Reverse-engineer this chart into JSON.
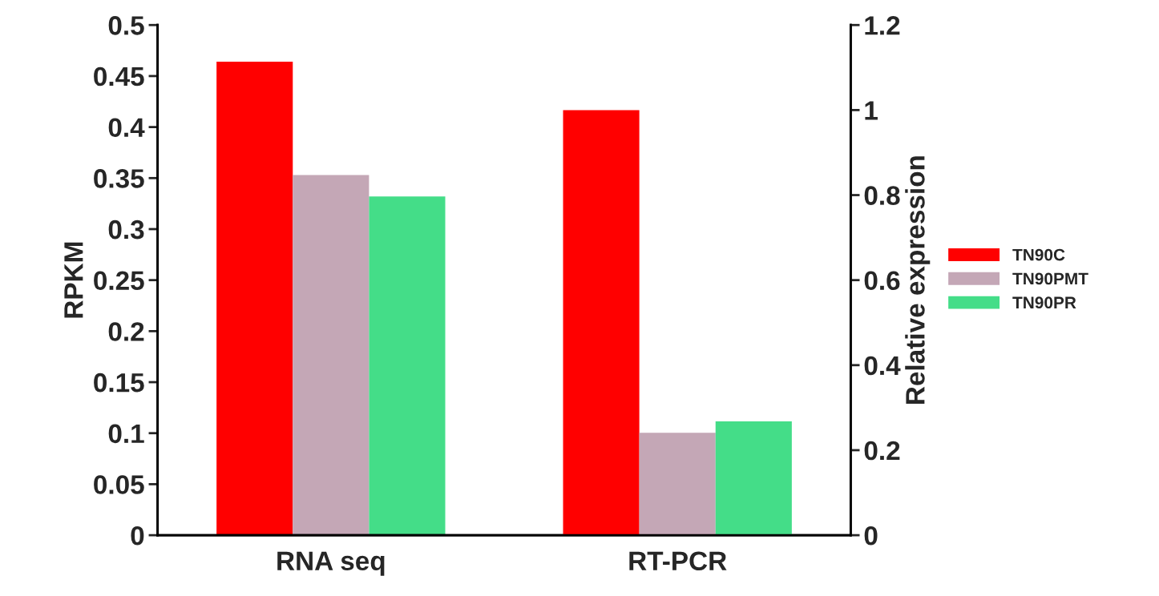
{
  "chart_data": {
    "type": "bar",
    "ylabel": "RPKM",
    "y2label": "Relative expression",
    "categories": [
      "RNA seq",
      "RT-PCR"
    ],
    "series": [
      {
        "name": "TN90C",
        "color": "#ff0000",
        "values": [
          0.464,
          null
        ]
      },
      {
        "name": "TN90PMT",
        "color": "#c4a7b6",
        "values": [
          0.353,
          null
        ]
      },
      {
        "name": "TN90PR",
        "color": "#44dd88",
        "values": [
          0.332,
          null
        ]
      },
      {
        "color": "#ff0000",
        "axis": "y2",
        "values": [
          null,
          1.0
        ]
      },
      {
        "color": "#c4a7b6",
        "axis": "y2",
        "values": [
          null,
          0.241
        ]
      },
      {
        "color": "#44dd88",
        "axis": "y2",
        "values": [
          null,
          0.268
        ]
      }
    ],
    "ylim": [
      0,
      0.5
    ],
    "yticks": [
      0,
      0.05,
      0.1,
      0.15,
      0.2,
      0.25,
      0.3,
      0.35,
      0.4,
      0.45,
      0.5
    ],
    "y2lim": [
      0,
      1.2
    ],
    "y2ticks": [
      0,
      0.2,
      0.4,
      0.6,
      0.8,
      1,
      1.2
    ],
    "grid": false,
    "legend": "right"
  }
}
